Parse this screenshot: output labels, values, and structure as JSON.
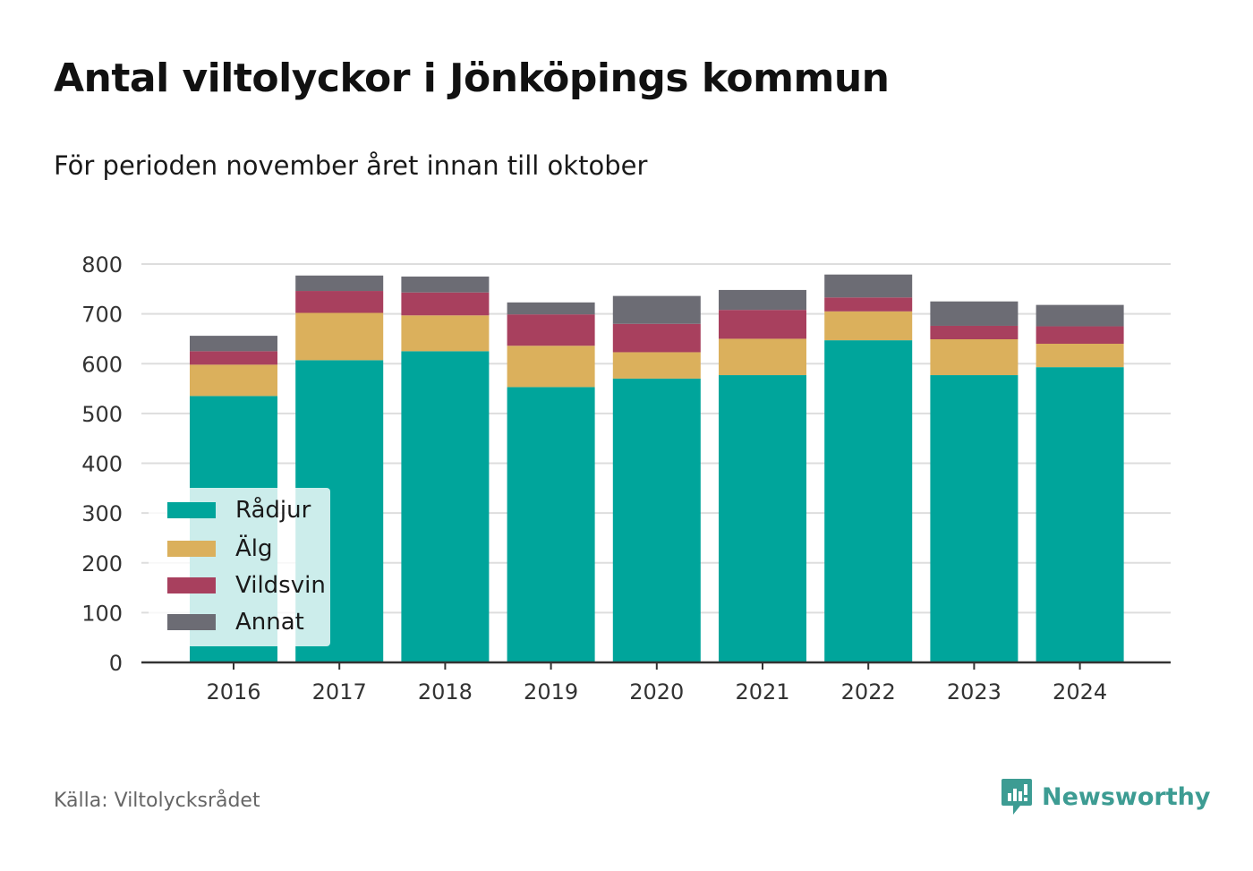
{
  "header": {
    "title": "Antal viltolyckor i Jönköpings kommun",
    "subtitle": "För perioden november året innan till oktober"
  },
  "footer": {
    "source": "Källa: Viltolycksrådet",
    "brand": "Newsworthy"
  },
  "colors": {
    "Rådjur": "#00a59b",
    "Älg": "#dbb05c",
    "Vildsvin": "#a8405e",
    "Annat": "#6c6c74",
    "grid": "#dddddd",
    "axis": "#333333",
    "brand": "#3d9c93"
  },
  "chart_data": {
    "type": "bar",
    "stacked": true,
    "categories": [
      "2016",
      "2017",
      "2018",
      "2019",
      "2020",
      "2021",
      "2022",
      "2023",
      "2024"
    ],
    "series": [
      {
        "name": "Rådjur",
        "values": [
          535,
          607,
          625,
          553,
          570,
          577,
          647,
          577,
          593
        ]
      },
      {
        "name": "Älg",
        "values": [
          63,
          95,
          72,
          83,
          53,
          73,
          58,
          72,
          47
        ]
      },
      {
        "name": "Vildsvin",
        "values": [
          27,
          44,
          46,
          63,
          57,
          58,
          28,
          27,
          35
        ]
      },
      {
        "name": "Annat",
        "values": [
          31,
          31,
          32,
          24,
          56,
          40,
          46,
          49,
          43
        ]
      }
    ],
    "ylim": [
      0,
      800
    ],
    "yticks": [
      0,
      100,
      200,
      300,
      400,
      500,
      600,
      700,
      800
    ],
    "grid": true,
    "legend": "bottom-left"
  }
}
